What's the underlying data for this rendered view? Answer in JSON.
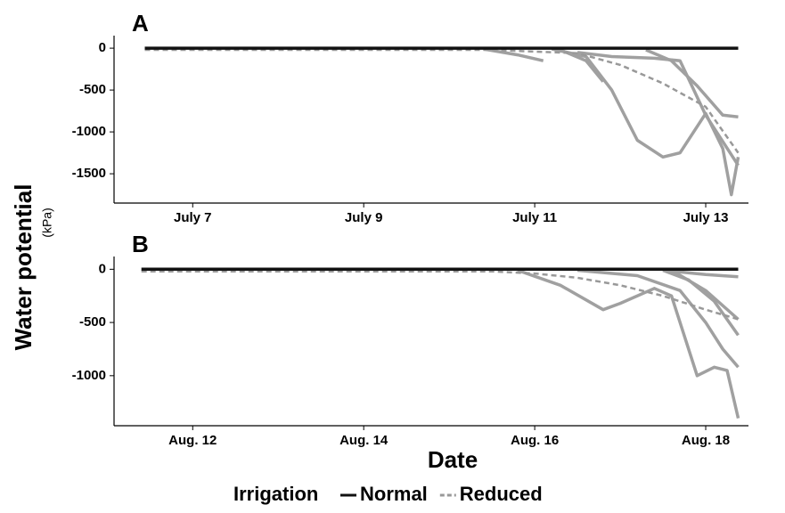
{
  "ylabel": "Water potential",
  "ylabel_unit": "(kPa)",
  "xlabel": "Date",
  "legend_title": "Irrigation",
  "legend_position": "bottom",
  "chart_data": [
    {
      "type": "line",
      "title": "A",
      "x": [
        6.44,
        10.5,
        11,
        11.5,
        12,
        12.5,
        13,
        13.38
      ],
      "series": [
        {
          "name": "Normal",
          "color": "#111111",
          "dash": false,
          "values": [
            0,
            0,
            0,
            0,
            0,
            0,
            0,
            0
          ]
        },
        {
          "name": "Reduced",
          "color": "#999999",
          "dash": true,
          "values": [
            -20,
            -20,
            -40,
            -60,
            -200,
            -420,
            -700,
            -1250
          ]
        }
      ],
      "trace_color": "#a0a0a0",
      "traces": [
        {
          "x": [
            10.4,
            10.8,
            11.1
          ],
          "values": [
            -10,
            -80,
            -150
          ]
        },
        {
          "x": [
            11.2,
            11.6,
            11.9,
            12.2,
            12.5,
            12.7,
            13.0,
            13.2,
            13.3,
            13.38
          ],
          "values": [
            -10,
            -100,
            -500,
            -1100,
            -1300,
            -1250,
            -780,
            -1200,
            -1750,
            -1300
          ]
        },
        {
          "x": [
            11.3,
            11.6,
            11.8
          ],
          "values": [
            -20,
            -150,
            -400
          ]
        },
        {
          "x": [
            11.5,
            11.9,
            12.4,
            12.7,
            13.0,
            13.38
          ],
          "values": [
            -50,
            -100,
            -120,
            -150,
            -800,
            -1400
          ]
        },
        {
          "x": [
            12.3,
            12.6,
            12.9,
            13.2,
            13.38
          ],
          "values": [
            -20,
            -150,
            -450,
            -800,
            -820
          ]
        }
      ],
      "xlim": [
        6.08,
        13.5
      ],
      "ylim": [
        -1850,
        150
      ],
      "xticks": [
        {
          "value": 7,
          "label": "July 7"
        },
        {
          "value": 9,
          "label": "July 9"
        },
        {
          "value": 11,
          "label": "July 11"
        },
        {
          "value": 13,
          "label": "July 13"
        }
      ],
      "yticks": [
        0,
        -500,
        -1000,
        -1500
      ]
    },
    {
      "type": "line",
      "title": "B",
      "x": [
        11.4,
        15.5,
        16,
        16.5,
        17,
        17.5,
        18,
        18.38
      ],
      "series": [
        {
          "name": "Normal",
          "color": "#111111",
          "dash": false,
          "values": [
            0,
            0,
            0,
            0,
            0,
            0,
            0,
            0
          ]
        },
        {
          "name": "Reduced",
          "color": "#999999",
          "dash": true,
          "values": [
            -20,
            -20,
            -40,
            -80,
            -150,
            -250,
            -380,
            -470
          ]
        }
      ],
      "trace_color": "#a0a0a0",
      "traces": [
        {
          "x": [
            15.8,
            16.3,
            16.8,
            17.0,
            17.4,
            17.6,
            17.9,
            18.1,
            18.25,
            18.38
          ],
          "values": [
            -10,
            -150,
            -380,
            -320,
            -180,
            -250,
            -1000,
            -920,
            -950,
            -1400
          ]
        },
        {
          "x": [
            16.5,
            17.2,
            17.7,
            18.0,
            18.2,
            18.38
          ],
          "values": [
            -10,
            -60,
            -200,
            -500,
            -750,
            -920
          ]
        },
        {
          "x": [
            17.5,
            17.8,
            18.1,
            18.38
          ],
          "values": [
            -10,
            -100,
            -300,
            -620
          ]
        },
        {
          "x": [
            17.5,
            18.0,
            18.38
          ],
          "values": [
            -10,
            -50,
            -70
          ]
        },
        {
          "x": [
            17.6,
            18.0,
            18.38
          ],
          "values": [
            -10,
            -200,
            -470
          ]
        }
      ],
      "xlim": [
        11.08,
        18.5
      ],
      "ylim": [
        -1470,
        120
      ],
      "xticks": [
        {
          "value": 12,
          "label": "Aug. 12"
        },
        {
          "value": 14,
          "label": "Aug. 14"
        },
        {
          "value": 16,
          "label": "Aug. 16"
        },
        {
          "value": 18,
          "label": "Aug. 18"
        }
      ],
      "yticks": [
        0,
        -500,
        -1000
      ]
    }
  ]
}
